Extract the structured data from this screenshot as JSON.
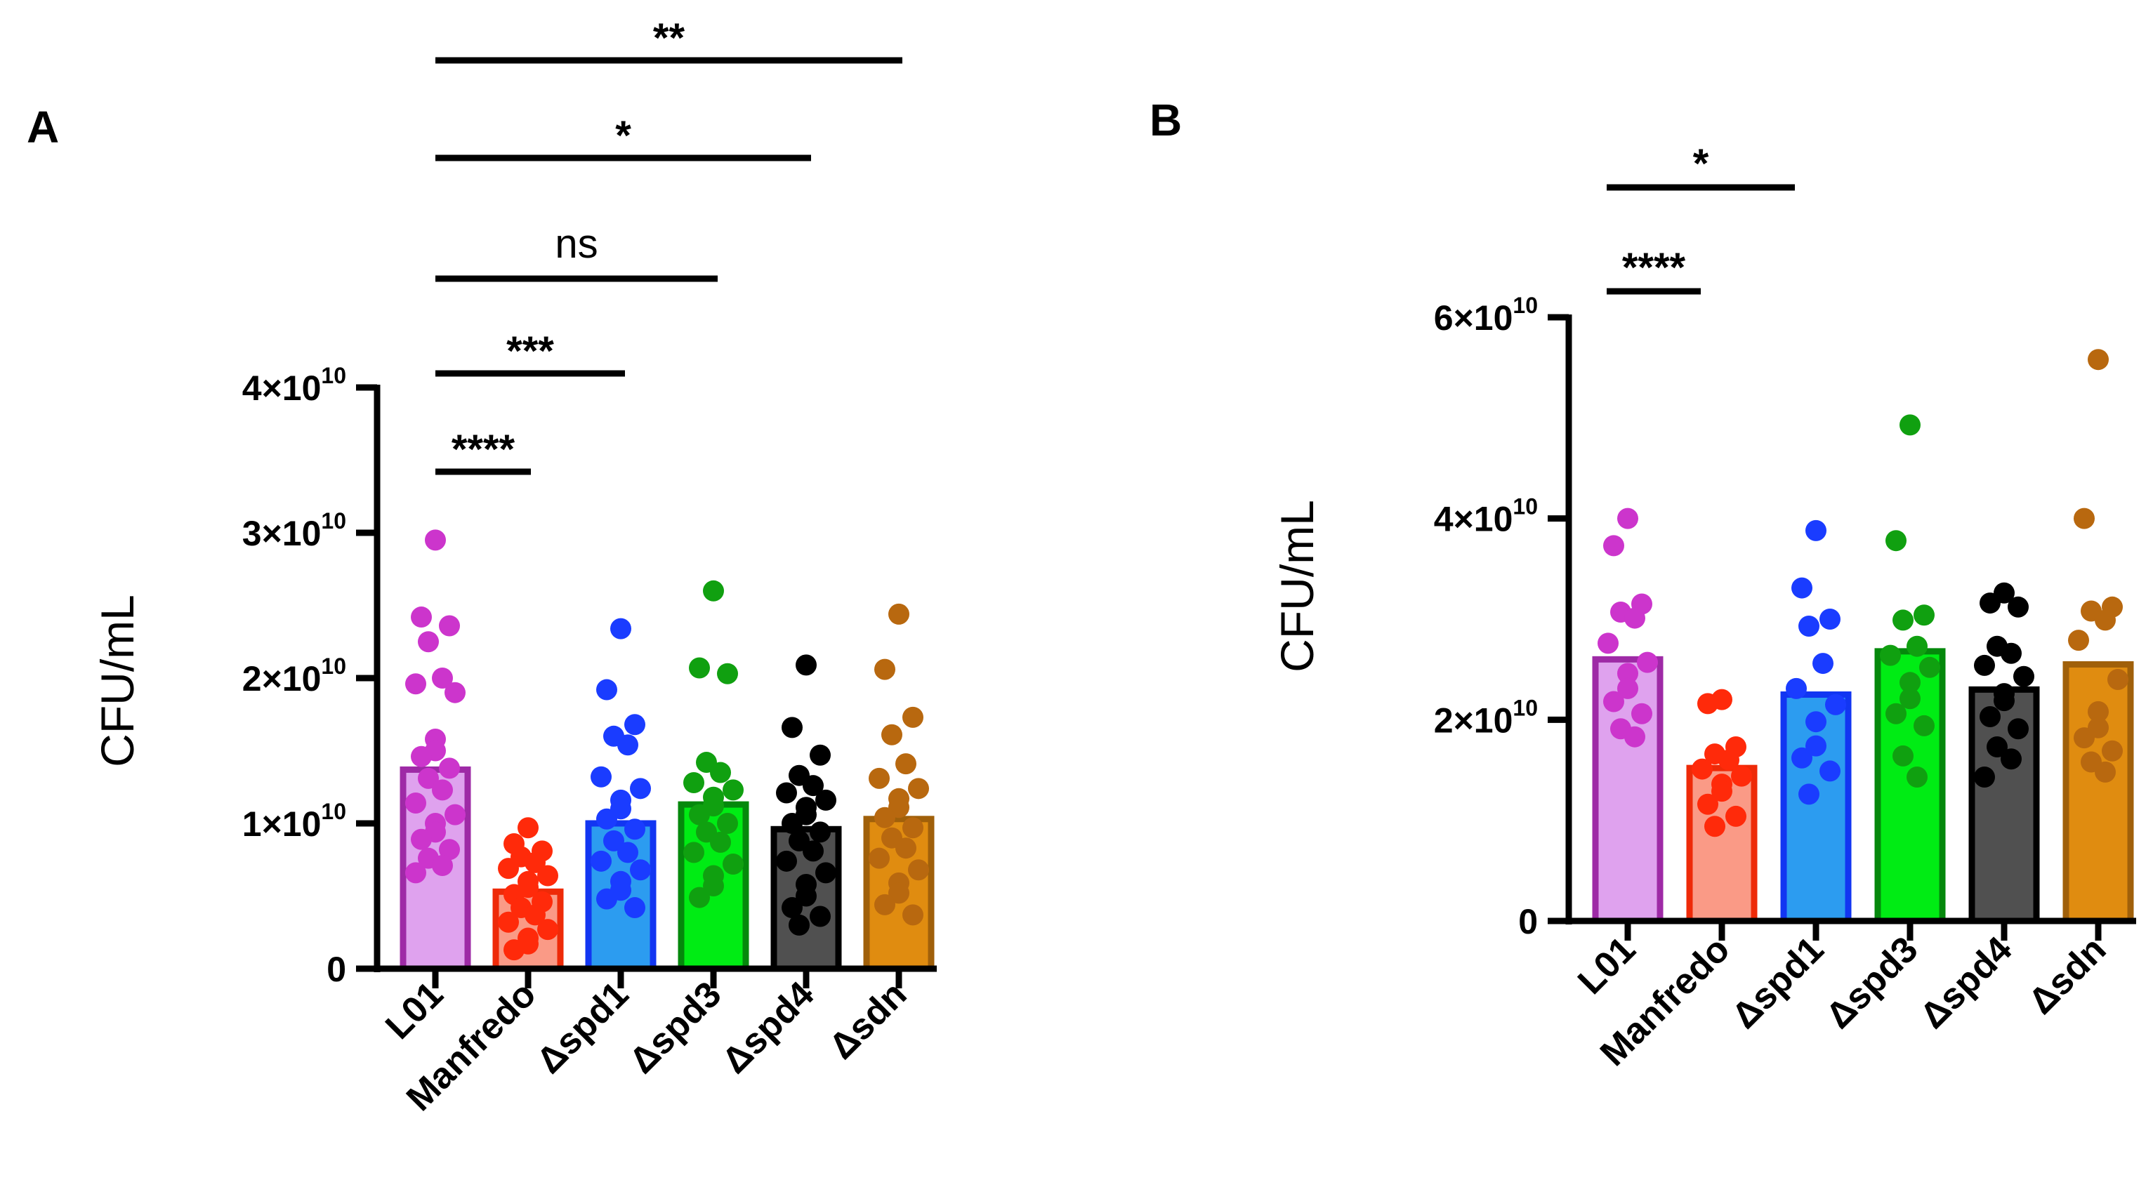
{
  "colors": {
    "L01": {
      "fill": "#dfa2ee",
      "stroke": "#9e2aa6",
      "dot": "#cc35cc"
    },
    "Manfredo": {
      "fill": "#fa9a86",
      "stroke": "#ee2a08",
      "dot": "#ff2a0a"
    },
    "Δspd1": {
      "fill": "#2c9cf0",
      "stroke": "#1236f2",
      "dot": "#1a3cff"
    },
    "Δspd3": {
      "fill": "#00ec14",
      "stroke": "#05880c",
      "dot": "#10a010"
    },
    "Δspd4": {
      "fill": "#505050",
      "stroke": "#000000",
      "dot": "#000000"
    },
    "Δsdn": {
      "fill": "#e08c10",
      "stroke": "#a0600a",
      "dot": "#b8680f"
    }
  },
  "chart_data": [
    {
      "panel": "A",
      "type": "bar",
      "ylabel": "CFU/mL",
      "ylim": [
        0,
        40000000000
      ],
      "yticks": [
        {
          "value": 0,
          "mantissa": "0",
          "exponent": ""
        },
        {
          "value": 10000000000,
          "mantissa": "1×10",
          "exponent": "10"
        },
        {
          "value": 20000000000,
          "mantissa": "2×10",
          "exponent": "10"
        },
        {
          "value": 30000000000,
          "mantissa": "3×10",
          "exponent": "10"
        },
        {
          "value": 40000000000,
          "mantissa": "4×10",
          "exponent": "10"
        }
      ],
      "categories": [
        "L01",
        "Manfredo",
        "Δspd1",
        "Δspd3",
        "Δspd4",
        "Δsdn"
      ],
      "values": [
        13700000000,
        5300000000,
        10000000000,
        11300000000,
        9600000000,
        10300000000
      ],
      "points": [
        [
          29500000000,
          24200000000,
          23600000000,
          22500000000,
          20000000000,
          19600000000,
          19000000000,
          15800000000,
          15000000000,
          14600000000,
          13800000000,
          13100000000,
          12300000000,
          11400000000,
          10600000000,
          10000000000,
          9400000000,
          8900000000,
          8200000000,
          7600000000,
          7100000000,
          6600000000
        ],
        [
          9700000000,
          8600000000,
          8100000000,
          7700000000,
          7300000000,
          6900000000,
          6400000000,
          6000000000,
          5600000000,
          5100000000,
          4600000000,
          4200000000,
          3700000000,
          3200000000,
          2700000000,
          2100000000,
          1700000000,
          1300000000
        ],
        [
          23400000000,
          19200000000,
          16800000000,
          16000000000,
          15400000000,
          13200000000,
          12400000000,
          11600000000,
          11000000000,
          10300000000,
          9600000000,
          8800000000,
          8000000000,
          7400000000,
          6800000000,
          6000000000,
          5400000000,
          4800000000,
          4200000000
        ],
        [
          26000000000,
          20700000000,
          20300000000,
          14200000000,
          13500000000,
          12800000000,
          12300000000,
          11800000000,
          11200000000,
          10600000000,
          10000000000,
          9400000000,
          8700000000,
          8000000000,
          7200000000,
          6400000000,
          5700000000,
          4900000000
        ],
        [
          20900000000,
          16600000000,
          14700000000,
          13300000000,
          12600000000,
          12100000000,
          11600000000,
          11100000000,
          10600000000,
          10000000000,
          9400000000,
          8800000000,
          8100000000,
          7400000000,
          6600000000,
          5800000000,
          5000000000,
          4200000000,
          3600000000,
          3000000000
        ],
        [
          24400000000,
          20600000000,
          17300000000,
          16100000000,
          14100000000,
          13100000000,
          12400000000,
          11700000000,
          11100000000,
          10400000000,
          9700000000,
          9000000000,
          8300000000,
          7600000000,
          6800000000,
          5900000000,
          5200000000,
          4400000000,
          3700000000
        ]
      ],
      "significance": [
        {
          "from": 0,
          "to": 1,
          "label": "****"
        },
        {
          "from": 0,
          "to": 2,
          "label": "***"
        },
        {
          "from": 0,
          "to": 3,
          "label": "ns"
        },
        {
          "from": 0,
          "to": 4,
          "label": "*"
        },
        {
          "from": 0,
          "to": 5,
          "label": "**"
        }
      ]
    },
    {
      "panel": "B",
      "type": "bar",
      "ylabel": "CFU/mL",
      "ylim": [
        0,
        60000000000
      ],
      "yticks": [
        {
          "value": 0,
          "mantissa": "0",
          "exponent": ""
        },
        {
          "value": 20000000000,
          "mantissa": "2×10",
          "exponent": "10"
        },
        {
          "value": 40000000000,
          "mantissa": "4×10",
          "exponent": "10"
        },
        {
          "value": 60000000000,
          "mantissa": "6×10",
          "exponent": "10"
        }
      ],
      "categories": [
        "L01",
        "Manfredo",
        "Δspd1",
        "Δspd3",
        "Δspd4",
        "Δsdn"
      ],
      "values": [
        26000000000,
        15200000000,
        22500000000,
        26800000000,
        23000000000,
        25500000000
      ],
      "points": [
        [
          40000000000,
          37300000000,
          31500000000,
          30700000000,
          30100000000,
          27600000000,
          25700000000,
          24600000000,
          23100000000,
          21800000000,
          20600000000,
          19100000000,
          18300000000
        ],
        [
          22000000000,
          21600000000,
          17300000000,
          16600000000,
          16000000000,
          15100000000,
          14400000000,
          13600000000,
          12900000000,
          11600000000,
          10400000000,
          9400000000
        ],
        [
          38800000000,
          33100000000,
          30000000000,
          29300000000,
          25600000000,
          23100000000,
          21500000000,
          19800000000,
          17400000000,
          16200000000,
          14900000000,
          12600000000
        ],
        [
          49300000000,
          37800000000,
          30400000000,
          29900000000,
          27300000000,
          26400000000,
          25200000000,
          23700000000,
          22100000000,
          20600000000,
          19400000000,
          16400000000,
          14300000000
        ],
        [
          32600000000,
          31600000000,
          31200000000,
          27300000000,
          26600000000,
          25400000000,
          24300000000,
          22600000000,
          21900000000,
          20300000000,
          19100000000,
          17300000000,
          16100000000,
          14300000000
        ],
        [
          55800000000,
          40000000000,
          31200000000,
          30800000000,
          29900000000,
          27900000000,
          24000000000,
          20800000000,
          19200000000,
          18200000000,
          16900000000,
          15800000000,
          14800000000
        ]
      ],
      "significance": [
        {
          "from": 0,
          "to": 1,
          "label": "****"
        },
        {
          "from": 0,
          "to": 2,
          "label": "*"
        }
      ]
    }
  ]
}
